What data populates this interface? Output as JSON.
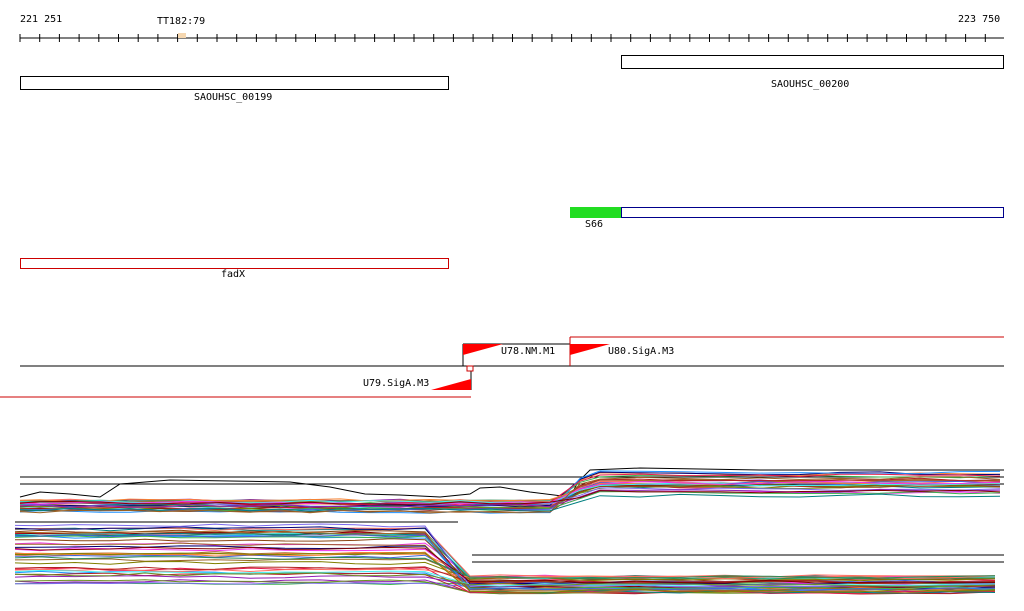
{
  "ruler": {
    "start_label": "221 251",
    "end_label": "223 750",
    "marker_label": "TT182:79"
  },
  "genes": [
    {
      "name": "SAOUHSC_00199",
      "color": "#000000"
    },
    {
      "name": "SAOUHSC_00200",
      "color": "#000000"
    }
  ],
  "features": {
    "s66": {
      "label": "S66",
      "fill": "#22dd22",
      "outline": "#00008b"
    },
    "fadx": {
      "label": "fadX",
      "color": "#cc0000"
    }
  },
  "promoters": [
    {
      "label": "U78.NM.M1",
      "strand": "+"
    },
    {
      "label": "U80.SigA.M3",
      "strand": "+"
    },
    {
      "label": "U79.SigA.M3",
      "strand": "-"
    }
  ],
  "colors": {
    "promoter": "#ff0000",
    "line": "#000000"
  },
  "expression": {
    "upper_panel": "forward-strand expression traces",
    "lower_panel": "reverse-strand expression traces"
  }
}
